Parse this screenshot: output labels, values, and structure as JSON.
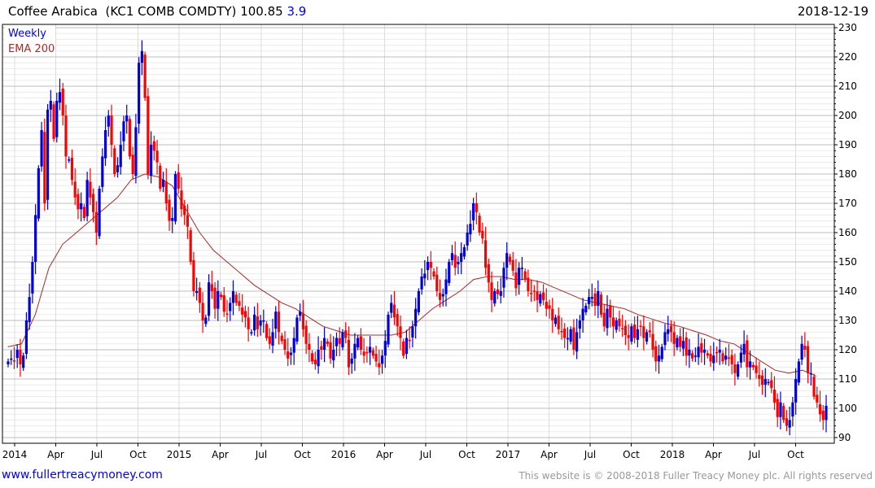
{
  "header": {
    "name": "Coffee Arabica",
    "ticker": "(KC1 COMB COMDTY)",
    "last": "100.85",
    "change": "3.9",
    "date": "2018-12-19"
  },
  "footer": {
    "site": "www.fullertreacymoney.com",
    "copyright": "This website is © 2008-2018 Fuller Treacy Money plc. All rights reserved"
  },
  "colors": {
    "up": "#0000dd",
    "down": "#ff0000",
    "ema": "#a52a2a",
    "legend_weekly": "#0000ee"
  },
  "chart_data": {
    "type": "candlestick",
    "title": "Coffee Arabica (KC1 COMB COMDTY)",
    "interval": "Weekly",
    "legend": [
      "Weekly",
      "EMA 200"
    ],
    "legend_placement": "top-left",
    "ylim": [
      90,
      230
    ],
    "y_ticks": [
      90,
      100,
      110,
      120,
      130,
      140,
      150,
      160,
      170,
      180,
      190,
      200,
      210,
      220,
      230
    ],
    "x_ticks": [
      "2014",
      "Apr",
      "Jul",
      "Oct",
      "2015",
      "Apr",
      "Jul",
      "Oct",
      "2016",
      "Apr",
      "Jul",
      "Oct",
      "2017",
      "Apr",
      "Jul",
      "Oct",
      "2018",
      "Apr",
      "Jul",
      "Oct"
    ],
    "weekly_close": [
      116,
      117,
      116,
      120,
      115,
      118,
      130,
      138,
      150,
      166,
      182,
      195,
      170,
      202,
      205,
      192,
      205,
      208,
      200,
      186,
      185,
      178,
      172,
      168,
      170,
      165,
      178,
      172,
      167,
      160,
      175,
      186,
      195,
      200,
      190,
      180,
      183,
      190,
      198,
      200,
      186,
      180,
      196,
      218,
      222,
      206,
      180,
      190,
      188,
      184,
      175,
      178,
      170,
      164,
      165,
      180,
      175,
      168,
      166,
      162,
      150,
      140,
      140,
      136,
      130,
      131,
      143,
      140,
      134,
      140,
      138,
      133,
      132,
      136,
      140,
      136,
      135,
      132,
      131,
      127,
      126,
      132,
      127,
      130,
      130,
      124,
      122,
      126,
      133,
      126,
      123,
      120,
      117,
      119,
      124,
      131,
      133,
      127,
      122,
      120,
      116,
      115,
      120,
      120,
      124,
      122,
      117,
      120,
      124,
      122,
      126,
      124,
      114,
      117,
      122,
      124,
      120,
      118,
      119,
      121,
      118,
      116,
      114,
      118,
      123,
      132,
      136,
      131,
      128,
      124,
      118,
      124,
      123,
      128,
      134,
      140,
      145,
      146,
      150,
      148,
      145,
      140,
      137,
      139,
      144,
      150,
      153,
      148,
      150,
      153,
      155,
      160,
      163,
      170,
      167,
      160,
      158,
      148,
      143,
      137,
      140,
      139,
      140,
      148,
      153,
      150,
      147,
      141,
      148,
      148,
      144,
      140,
      139,
      140,
      137,
      139,
      137,
      134,
      134,
      130,
      131,
      127,
      126,
      124,
      124,
      127,
      120,
      126,
      130,
      134,
      135,
      138,
      138,
      135,
      140,
      132,
      128,
      134,
      131,
      128,
      130,
      128,
      127,
      125,
      124,
      128,
      124,
      127,
      128,
      124,
      126,
      126,
      120,
      116,
      118,
      121,
      126,
      127,
      126,
      122,
      124,
      121,
      123,
      118,
      120,
      117,
      118,
      121,
      119,
      120,
      118,
      116,
      118,
      119,
      120,
      116,
      118,
      117,
      115,
      112,
      115,
      119,
      122,
      114,
      116,
      114,
      112,
      110,
      108,
      110,
      109,
      107,
      102,
      97,
      102,
      96,
      94,
      96,
      102,
      110,
      116,
      122,
      120,
      112,
      112,
      104,
      102,
      98,
      96,
      100.85
    ],
    "ema200_monthly": [
      121,
      122,
      132,
      148,
      156,
      160,
      164,
      168,
      172,
      178,
      180,
      179,
      176,
      168,
      160,
      154,
      150,
      146,
      142,
      139,
      136,
      134,
      131,
      128,
      126.5,
      125,
      125,
      125,
      125,
      126,
      130,
      134,
      137,
      140,
      144,
      145,
      145,
      144,
      144,
      143,
      141,
      139,
      137,
      136,
      135,
      134,
      132,
      130.5,
      129,
      128,
      126.5,
      125,
      123,
      122,
      119,
      116,
      113,
      112,
      113,
      111
    ]
  }
}
